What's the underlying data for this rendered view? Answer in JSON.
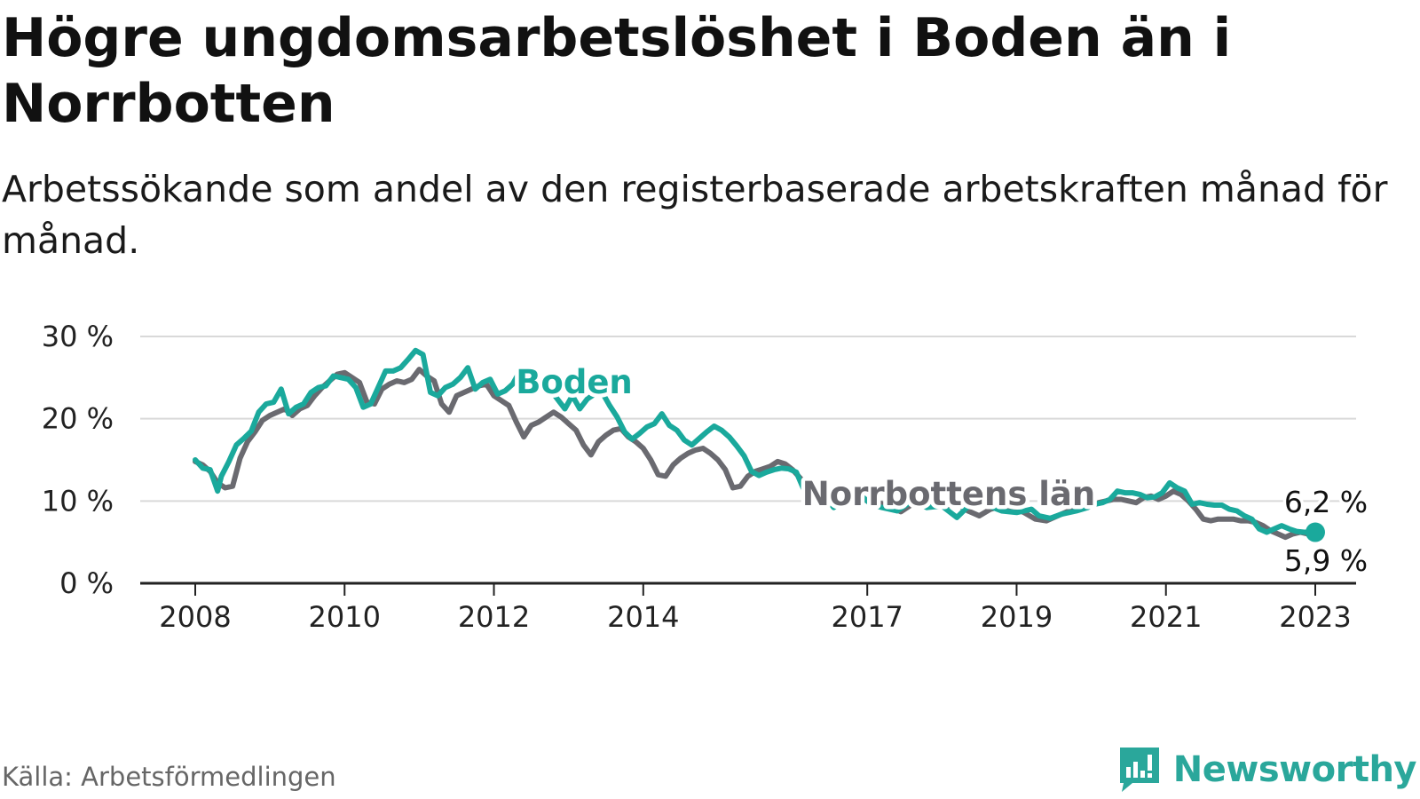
{
  "title": "Högre ungdomsarbetslöshet i Boden än i Norrbotten",
  "subtitle": "Arbetssökande som andel av den registerbaserade arbetskraften månad för månad.",
  "source": "Källa: Arbetsförmedlingen",
  "brand": "Newsworthy",
  "colors": {
    "boden": "#1aa99c",
    "norrbotten": "#6a6a70",
    "grid": "#d9d9d9",
    "axis": "#222222",
    "brand": "#2aa79b"
  },
  "chart_data": {
    "type": "line",
    "title": "Högre ungdomsarbetslöshet i Boden än i Norrbotten",
    "subtitle": "Arbetssökande som andel av den registerbaserade arbetskraften månad för månad.",
    "xlabel": "",
    "ylabel": "",
    "x_range": [
      2008.0,
      2023.0
    ],
    "ylim": [
      0,
      30
    ],
    "y_ticks": [
      0,
      10,
      20,
      30
    ],
    "y_tick_labels": [
      "0 %",
      "10 %",
      "20 %",
      "30 %"
    ],
    "x_ticks": [
      2008,
      2010,
      2012,
      2014,
      2017,
      2019,
      2021,
      2023
    ],
    "x_tick_labels": [
      "2008",
      "2010",
      "2012",
      "2014",
      "2017",
      "2019",
      "2021",
      "2023"
    ],
    "grid": true,
    "series": [
      {
        "name": "Boden",
        "label": "Boden",
        "end_label": "6,2 %",
        "x": [
          2008.0,
          2008.1,
          2008.2,
          2008.3,
          2008.35,
          2008.45,
          2008.55,
          2008.65,
          2008.75,
          2008.85,
          2008.95,
          2009.05,
          2009.15,
          2009.25,
          2009.35,
          2009.45,
          2009.5,
          2009.55,
          2009.65,
          2009.75,
          2009.85,
          2009.95,
          2010.05,
          2010.15,
          2010.25,
          2010.35,
          2010.45,
          2010.55,
          2010.65,
          2010.75,
          2010.85,
          2010.95,
          2011.05,
          2011.15,
          2011.25,
          2011.35,
          2011.45,
          2011.55,
          2011.65,
          2011.75,
          2011.85,
          2011.95,
          2012.05,
          2012.15,
          2012.25,
          2012.35,
          2012.45,
          2012.55,
          2012.65,
          2012.75,
          2012.85,
          2012.95,
          2013.05,
          2013.15,
          2013.25,
          2013.35,
          2013.45,
          2013.55,
          2013.65,
          2013.75,
          2013.85,
          2013.95,
          2014.05,
          2014.15,
          2014.25,
          2014.35,
          2014.45,
          2014.55,
          2014.65,
          2014.75,
          2014.85,
          2014.95,
          2015.05,
          2015.15,
          2015.25,
          2015.35,
          2015.45,
          2015.55,
          2015.65,
          2015.75,
          2015.85,
          2015.95,
          2016.05,
          2016.15,
          2016.25,
          2016.35,
          2016.45,
          2016.55,
          2016.65,
          2016.75,
          2016.85,
          2016.95,
          2017.05,
          2017.2,
          2017.4,
          2017.6,
          2017.8,
          2018.0,
          2018.2,
          2018.4,
          2018.6,
          2018.8,
          2019.0,
          2019.1,
          2019.2,
          2019.3,
          2019.45,
          2019.6,
          2019.8,
          2019.95,
          2020.05,
          2020.15,
          2020.25,
          2020.35,
          2020.45,
          2020.55,
          2020.65,
          2020.75,
          2020.85,
          2020.95,
          2021.05,
          2021.15,
          2021.25,
          2021.35,
          2021.45,
          2021.55,
          2021.65,
          2021.75,
          2021.85,
          2021.95,
          2022.05,
          2022.15,
          2022.25,
          2022.35,
          2022.45,
          2022.55,
          2022.65,
          2022.75,
          2022.85,
          2022.95,
          2023.0
        ],
        "values": [
          15.0,
          14.0,
          13.8,
          11.2,
          13.0,
          14.8,
          16.8,
          17.6,
          18.5,
          20.8,
          21.8,
          22.0,
          23.6,
          20.6,
          21.4,
          21.8,
          22.5,
          23.2,
          23.8,
          24.0,
          25.2,
          25.0,
          24.8,
          23.8,
          21.4,
          21.8,
          23.8,
          25.8,
          25.8,
          26.2,
          27.2,
          28.3,
          27.8,
          23.2,
          22.8,
          23.8,
          24.2,
          25.0,
          26.2,
          23.6,
          24.4,
          24.8,
          23.0,
          23.4,
          24.2,
          25.8,
          24.8,
          25.2,
          24.4,
          23.6,
          22.4,
          21.2,
          22.8,
          21.2,
          22.4,
          23.0,
          23.2,
          21.6,
          20.2,
          18.4,
          17.5,
          18.2,
          19.0,
          19.4,
          20.6,
          19.2,
          18.6,
          17.4,
          16.8,
          17.6,
          18.4,
          19.1,
          18.6,
          17.8,
          16.7,
          15.5,
          13.6,
          13.1,
          13.5,
          13.8,
          14.0,
          13.9,
          13.5,
          11.4,
          10.2,
          9.6,
          10.5,
          9.2,
          9.8,
          10.8,
          9.8,
          10.4,
          9.6,
          9.2,
          8.8,
          10.0,
          9.2,
          9.4,
          8.0,
          9.8,
          9.5,
          8.8,
          8.6,
          8.8,
          9.0,
          8.2,
          7.9,
          8.4,
          8.8,
          9.2,
          9.6,
          9.8,
          10.2,
          11.2,
          11.0,
          11.0,
          10.8,
          10.4,
          10.5,
          11.0,
          12.2,
          11.6,
          11.2,
          9.6,
          9.8,
          9.6,
          9.5,
          9.5,
          9.0,
          8.8,
          8.2,
          7.8,
          6.6,
          6.2,
          6.6,
          7.0,
          6.6,
          6.3,
          6.2,
          6.2,
          6.2
        ]
      },
      {
        "name": "Norrbottens län",
        "label": "Norrbottens län",
        "end_label": "5,9 %",
        "x": [
          2008.0,
          2008.1,
          2008.2,
          2008.3,
          2008.4,
          2008.5,
          2008.6,
          2008.7,
          2008.8,
          2008.9,
          2009.0,
          2009.1,
          2009.2,
          2009.3,
          2009.4,
          2009.5,
          2009.6,
          2009.7,
          2009.8,
          2009.9,
          2010.0,
          2010.1,
          2010.2,
          2010.3,
          2010.4,
          2010.5,
          2010.6,
          2010.7,
          2010.8,
          2010.9,
          2011.0,
          2011.1,
          2011.2,
          2011.3,
          2011.4,
          2011.5,
          2011.6,
          2011.7,
          2011.8,
          2011.9,
          2012.0,
          2012.1,
          2012.2,
          2012.3,
          2012.4,
          2012.5,
          2012.6,
          2012.7,
          2012.8,
          2012.9,
          2013.0,
          2013.1,
          2013.2,
          2013.3,
          2013.4,
          2013.5,
          2013.6,
          2013.7,
          2013.8,
          2013.9,
          2014.0,
          2014.1,
          2014.2,
          2014.3,
          2014.4,
          2014.5,
          2014.6,
          2014.7,
          2014.8,
          2014.9,
          2015.0,
          2015.1,
          2015.2,
          2015.3,
          2015.4,
          2015.5,
          2015.6,
          2015.7,
          2015.8,
          2015.9,
          2016.0,
          2016.1,
          2016.2,
          2016.3,
          2016.4,
          2016.5,
          2016.6,
          2016.7,
          2016.8,
          2016.9,
          2017.0,
          2017.15,
          2017.3,
          2017.45,
          2017.6,
          2017.75,
          2017.9,
          2018.05,
          2018.2,
          2018.35,
          2018.5,
          2018.65,
          2018.8,
          2018.95,
          2019.1,
          2019.25,
          2019.4,
          2019.55,
          2019.7,
          2019.85,
          2020.0,
          2020.1,
          2020.2,
          2020.3,
          2020.4,
          2020.5,
          2020.6,
          2020.7,
          2020.8,
          2020.9,
          2021.0,
          2021.1,
          2021.2,
          2021.3,
          2021.4,
          2021.5,
          2021.6,
          2021.7,
          2021.8,
          2021.9,
          2022.0,
          2022.1,
          2022.2,
          2022.3,
          2022.4,
          2022.5,
          2022.6,
          2022.7,
          2022.8,
          2022.9,
          2023.0
        ],
        "values": [
          14.8,
          14.4,
          13.6,
          12.2,
          11.6,
          11.8,
          15.2,
          17.2,
          18.4,
          19.8,
          20.4,
          20.8,
          21.2,
          20.4,
          21.2,
          21.6,
          22.8,
          23.8,
          24.6,
          25.4,
          25.6,
          25.0,
          24.4,
          22.0,
          21.8,
          23.6,
          24.2,
          24.6,
          24.4,
          24.8,
          26.0,
          25.2,
          24.6,
          21.8,
          20.8,
          22.8,
          23.2,
          23.6,
          24.0,
          24.2,
          22.8,
          22.2,
          21.6,
          19.6,
          17.8,
          19.2,
          19.6,
          20.2,
          20.8,
          20.2,
          19.4,
          18.6,
          16.8,
          15.6,
          17.2,
          18.0,
          18.6,
          18.8,
          17.8,
          17.2,
          16.4,
          15.0,
          13.2,
          13.0,
          14.4,
          15.2,
          15.8,
          16.2,
          16.4,
          15.8,
          15.0,
          13.8,
          11.6,
          11.8,
          13.0,
          13.6,
          13.9,
          14.2,
          14.8,
          14.5,
          13.8,
          12.8,
          11.8,
          11.2,
          10.5,
          11.4,
          10.8,
          10.2,
          9.8,
          10.4,
          10.0,
          9.8,
          9.4,
          8.7,
          9.6,
          10.0,
          9.8,
          9.4,
          9.6,
          8.8,
          8.2,
          9.0,
          9.4,
          9.2,
          8.6,
          7.8,
          7.6,
          8.2,
          8.8,
          9.2,
          9.4,
          9.8,
          10.0,
          10.2,
          10.2,
          10.0,
          9.8,
          10.4,
          10.6,
          10.2,
          10.6,
          11.2,
          10.8,
          10.0,
          9.0,
          7.8,
          7.6,
          7.8,
          7.8,
          7.8,
          7.6,
          7.6,
          7.4,
          7.0,
          6.4,
          6.0,
          5.6,
          6.0,
          6.2,
          6.0,
          5.9
        ]
      }
    ]
  }
}
